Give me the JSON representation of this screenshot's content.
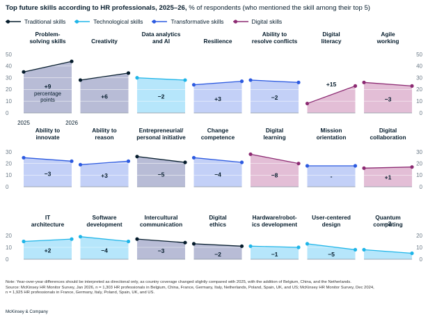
{
  "title": {
    "bold": "Top future skills according to HR professionals, 2025–26,",
    "rest": " % of respondents (who mentioned the skill among their top 5)"
  },
  "legend": [
    {
      "name": "Traditional skills",
      "color": "#051c2c"
    },
    {
      "name": "Technological skills",
      "color": "#1fb5e8"
    },
    {
      "name": "Transformative skills",
      "color": "#2c5ae0"
    },
    {
      "name": "Digital skills",
      "color": "#8c2a72"
    }
  ],
  "categories": {
    "traditional": {
      "line": "#051c2c",
      "fill": "#b8bcd6"
    },
    "technological": {
      "line": "#1fb5e8",
      "fill": "#b6e6fb"
    },
    "transformative": {
      "line": "#2c5ae0",
      "fill": "#c3d0f7"
    },
    "digital": {
      "line": "#8c2a72",
      "fill": "#e3bed6"
    }
  },
  "chart_data": {
    "type": "area",
    "x": [
      "2025",
      "2026"
    ],
    "panel_note": "percentage points",
    "rows": [
      {
        "ylim": [
          0,
          50
        ],
        "yticks": [
          "0",
          "10",
          "20",
          "30",
          "40",
          "50"
        ]
      },
      {
        "ylim": [
          0,
          30
        ],
        "yticks": [
          "0",
          "10",
          "20",
          "30"
        ]
      },
      {
        "ylim": [
          0,
          20
        ],
        "yticks": [
          "0",
          "10",
          "20"
        ]
      }
    ],
    "skills": [
      {
        "title": [
          "Problem-",
          "solving skills"
        ],
        "category": "traditional",
        "values": [
          35,
          44
        ],
        "change": "+9",
        "row": 0,
        "col": 0
      },
      {
        "title": [
          "Creativity"
        ],
        "category": "traditional",
        "values": [
          28,
          34
        ],
        "change": "+6",
        "row": 0,
        "col": 1
      },
      {
        "title": [
          "Data analytics",
          "and AI"
        ],
        "category": "technological",
        "values": [
          30,
          28
        ],
        "change": "−2",
        "row": 0,
        "col": 2
      },
      {
        "title": [
          "Resilience"
        ],
        "category": "transformative",
        "values": [
          24,
          27
        ],
        "change": "+3",
        "row": 0,
        "col": 3
      },
      {
        "title": [
          "Ability to",
          "resolve conflicts"
        ],
        "category": "transformative",
        "values": [
          28,
          26
        ],
        "change": "−2",
        "row": 0,
        "col": 4
      },
      {
        "title": [
          "Digital",
          "literacy"
        ],
        "category": "digital",
        "values": [
          8,
          23
        ],
        "change": "+15",
        "row": 0,
        "col": 5
      },
      {
        "title": [
          "Agile",
          "working"
        ],
        "category": "digital",
        "values": [
          26,
          23
        ],
        "change": "−3",
        "row": 0,
        "col": 6
      },
      {
        "title": [
          "Ability to",
          "innovate"
        ],
        "category": "transformative",
        "values": [
          25,
          22
        ],
        "change": "−3",
        "row": 1,
        "col": 0
      },
      {
        "title": [
          "Ability to",
          "reason"
        ],
        "category": "transformative",
        "values": [
          19,
          22
        ],
        "change": "+3",
        "row": 1,
        "col": 1
      },
      {
        "title": [
          "Entrepreneurial/",
          "personal initiative"
        ],
        "category": "traditional",
        "values": [
          26,
          21
        ],
        "change": "−5",
        "row": 1,
        "col": 2
      },
      {
        "title": [
          "Change",
          "competence"
        ],
        "category": "transformative",
        "values": [
          25,
          21
        ],
        "change": "−4",
        "row": 1,
        "col": 3
      },
      {
        "title": [
          "Digital",
          "learning"
        ],
        "category": "digital",
        "values": [
          28,
          20
        ],
        "change": "−8",
        "row": 1,
        "col": 4
      },
      {
        "title": [
          "Mission",
          "orientation"
        ],
        "category": "transformative",
        "values": [
          18,
          18
        ],
        "change": "-",
        "row": 1,
        "col": 5
      },
      {
        "title": [
          "Digital",
          "collaboration"
        ],
        "category": "digital",
        "values": [
          16,
          17
        ],
        "change": "+1",
        "row": 1,
        "col": 6
      },
      {
        "title": [
          "IT",
          "architecture"
        ],
        "category": "technological",
        "values": [
          15,
          17
        ],
        "change": "+2",
        "row": 2,
        "col": 0
      },
      {
        "title": [
          "Software",
          "development"
        ],
        "category": "technological",
        "values": [
          19,
          15
        ],
        "change": "−4",
        "row": 2,
        "col": 1
      },
      {
        "title": [
          "Intercultural",
          "communication"
        ],
        "category": "traditional",
        "values": [
          17,
          14
        ],
        "change": "−3",
        "row": 2,
        "col": 2
      },
      {
        "title": [
          "Digital",
          "ethics"
        ],
        "category": "traditional",
        "values": [
          13,
          11
        ],
        "change": "−2",
        "row": 2,
        "col": 3
      },
      {
        "title": [
          "Hardware/robot-",
          "ics development"
        ],
        "category": "technological",
        "values": [
          11,
          10
        ],
        "change": "−1",
        "row": 2,
        "col": 4
      },
      {
        "title": [
          "User-centered",
          "design"
        ],
        "category": "technological",
        "values": [
          13,
          8
        ],
        "change": "−5",
        "row": 2,
        "col": 5
      },
      {
        "title": [
          "Quantum",
          "computing"
        ],
        "category": "technological",
        "values": [
          8,
          5
        ],
        "change": "−3",
        "row": 2,
        "col": 6
      }
    ]
  },
  "notes": [
    "Note: Year-over-year differences should be interpreted as directional only, as country coverage changed slightly compared with 2025, with the addition of Belgium, China, and the Netherlands.",
    "Source: McKinsey HR Monitor Survey, Jan 2026, n = 1,303 HR professionals in Belgium, China, France, Germany, Italy, Netherlands, Poland, Spain, UK, and US; McKinsey HR Monitor Survey, Dec 2024,",
    "n = 1,925 HR professionals in France, Germany, Italy, Poland, Spain, UK, and US."
  ],
  "footer": "McKinsey & Company"
}
